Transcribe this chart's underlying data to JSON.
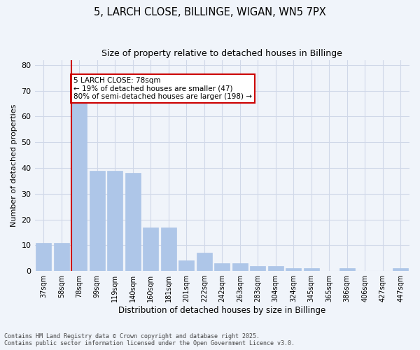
{
  "title1": "5, LARCH CLOSE, BILLINGE, WIGAN, WN5 7PX",
  "title2": "Size of property relative to detached houses in Billinge",
  "xlabel": "Distribution of detached houses by size in Billinge",
  "ylabel": "Number of detached properties",
  "categories": [
    "37sqm",
    "58sqm",
    "78sqm",
    "99sqm",
    "119sqm",
    "140sqm",
    "160sqm",
    "181sqm",
    "201sqm",
    "222sqm",
    "242sqm",
    "263sqm",
    "283sqm",
    "304sqm",
    "324sqm",
    "345sqm",
    "365sqm",
    "386sqm",
    "406sqm",
    "427sqm",
    "447sqm"
  ],
  "values": [
    11,
    11,
    68,
    39,
    39,
    38,
    17,
    17,
    4,
    7,
    3,
    3,
    2,
    2,
    1,
    1,
    0,
    1,
    0,
    0,
    1
  ],
  "bar_color": "#aec6e8",
  "bar_edge_color": "#aec6e8",
  "highlight_index": 2,
  "highlight_line_color": "#cc0000",
  "annotation_text": "5 LARCH CLOSE: 78sqm\n← 19% of detached houses are smaller (47)\n80% of semi-detached houses are larger (198) →",
  "annotation_box_color": "#ffffff",
  "annotation_box_edge": "#cc0000",
  "ylim": [
    0,
    82
  ],
  "yticks": [
    0,
    10,
    20,
    30,
    40,
    50,
    60,
    70,
    80
  ],
  "grid_color": "#d0d8e8",
  "background_color": "#f0f4fa",
  "footer1": "Contains HM Land Registry data © Crown copyright and database right 2025.",
  "footer2": "Contains public sector information licensed under the Open Government Licence v3.0."
}
